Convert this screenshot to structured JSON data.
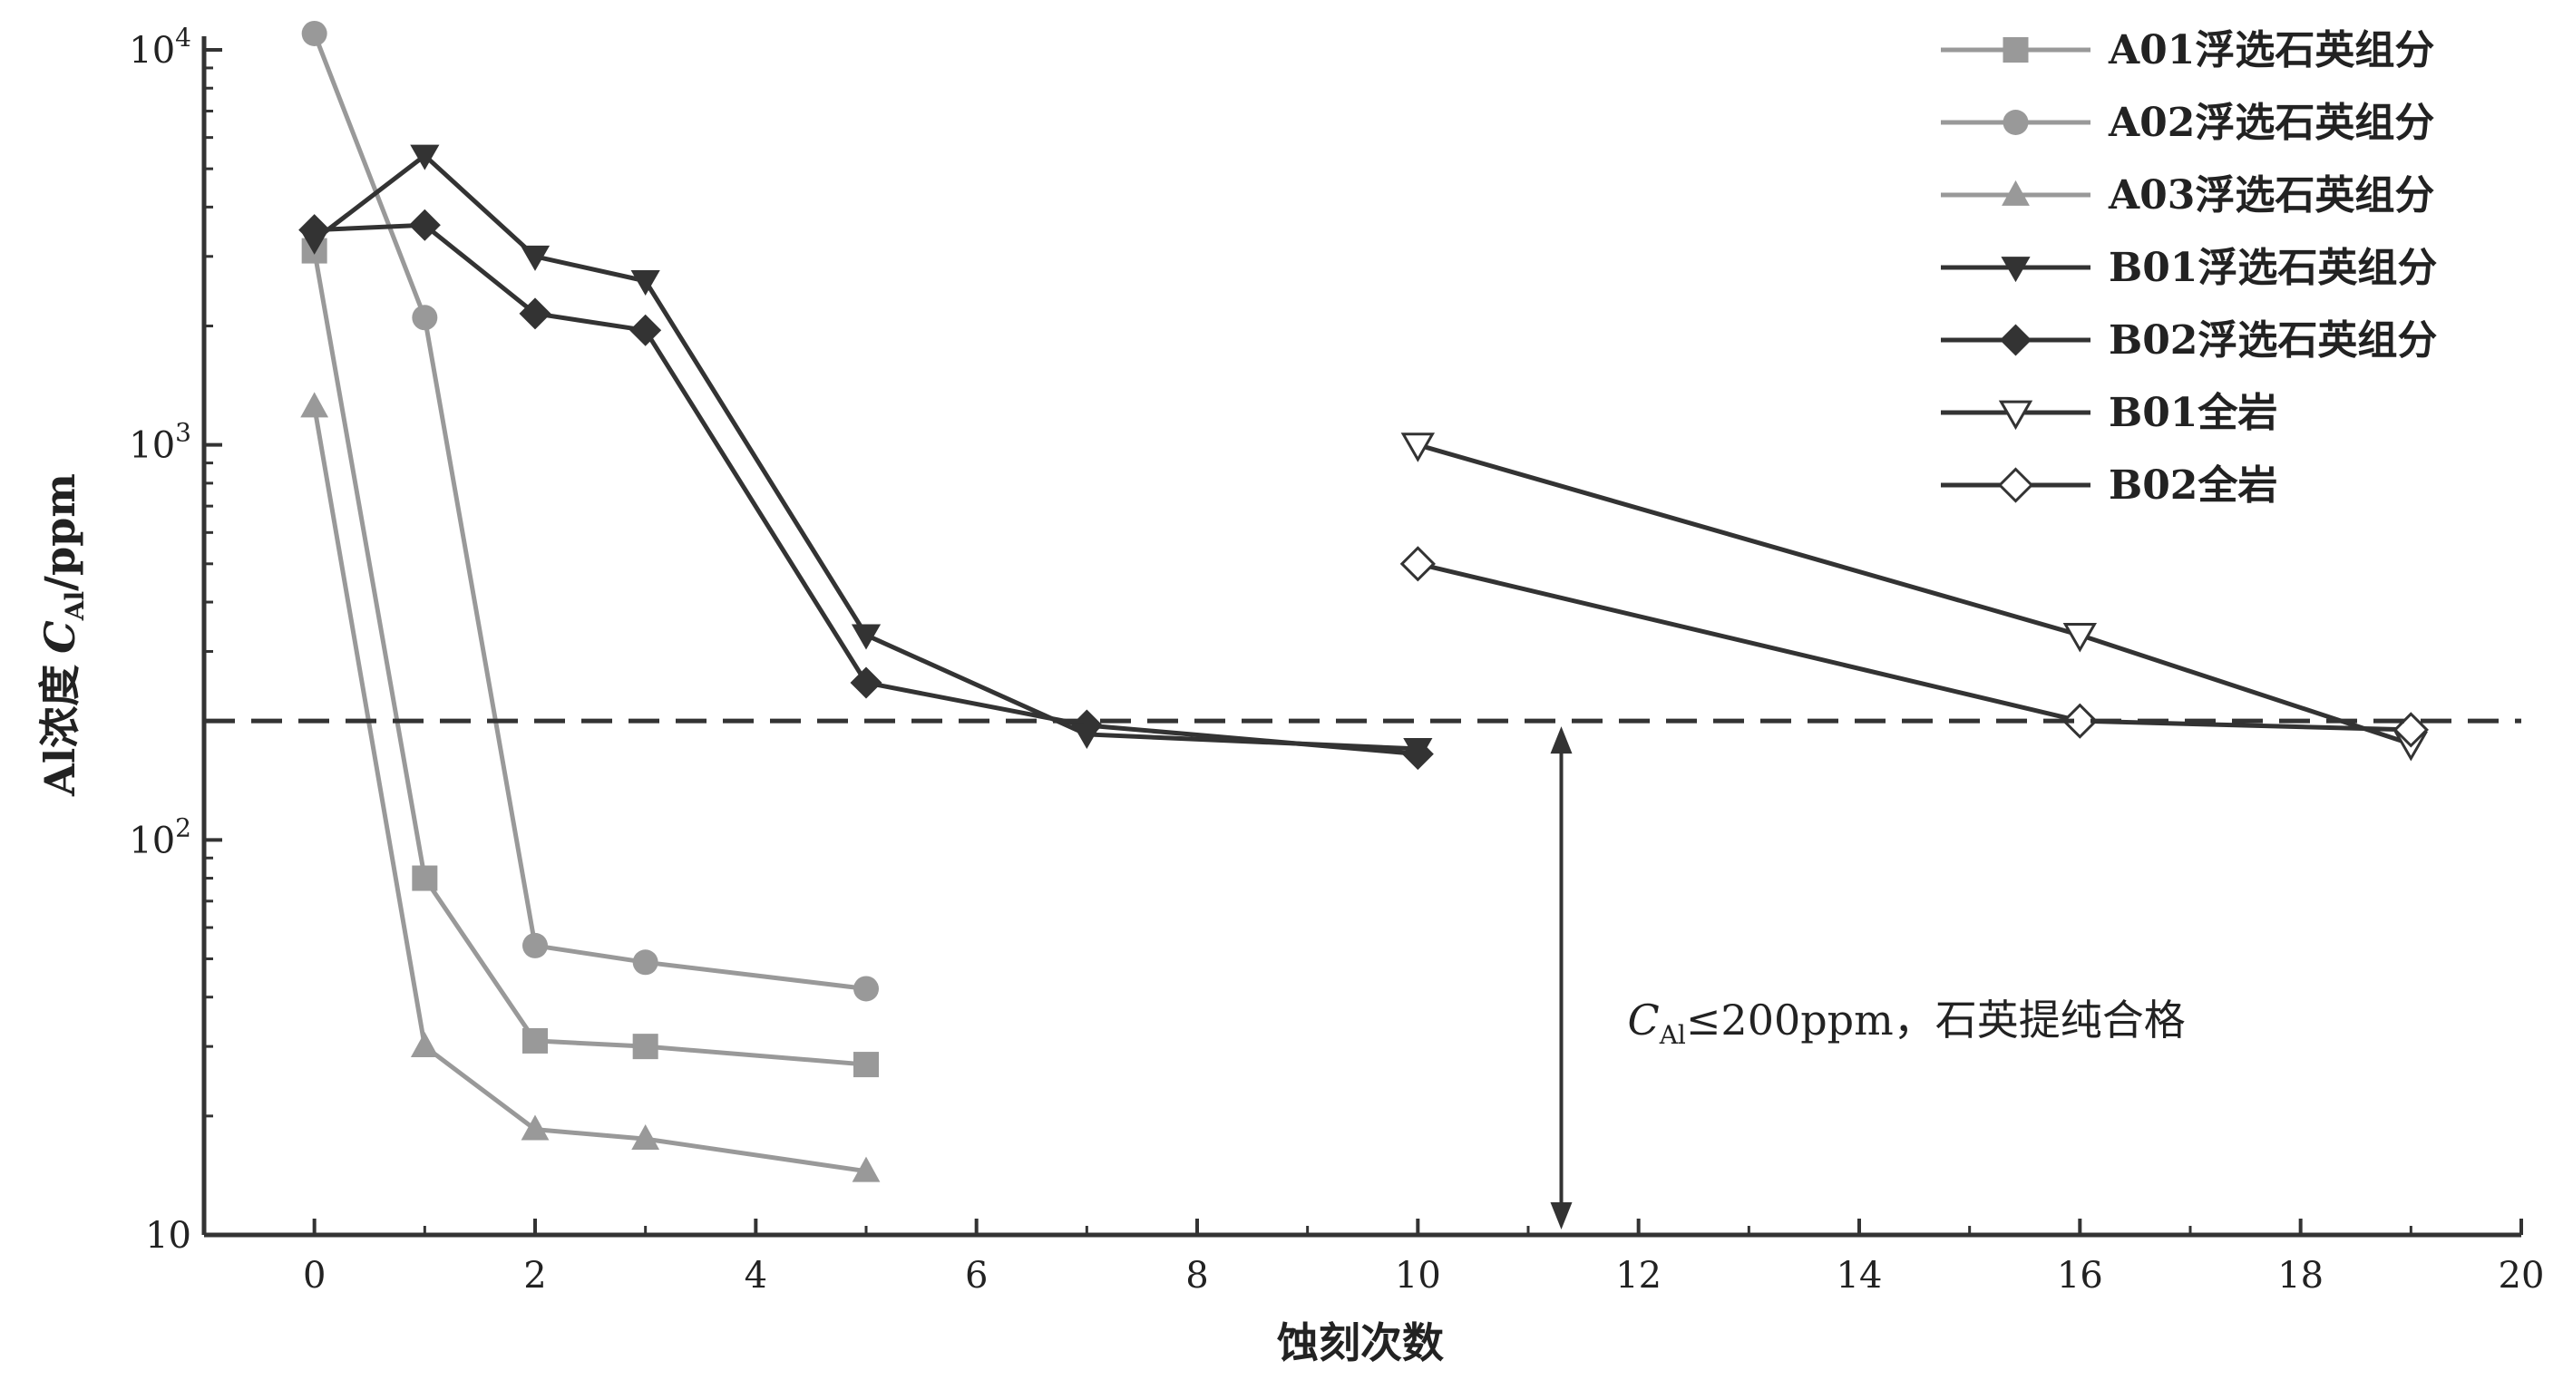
{
  "chart_data": {
    "type": "line",
    "xlabel": "蚀刻次数",
    "ylabel": "Al浓度",
    "ylabel_var": "C",
    "ylabel_sub": "Al",
    "ylabel_unit": "/ppm",
    "xlim": [
      -1,
      20
    ],
    "ylim": [
      10,
      10000
    ],
    "y_scale": "log",
    "x_ticks": [
      0,
      2,
      4,
      6,
      8,
      10,
      12,
      14,
      16,
      18,
      20
    ],
    "y_ticks": [
      {
        "value": 10,
        "base": "10",
        "exp": ""
      },
      {
        "value": 100,
        "base": "10",
        "exp": "2"
      },
      {
        "value": 1000,
        "base": "10",
        "exp": "3"
      },
      {
        "value": 10000,
        "base": "10",
        "exp": "4"
      }
    ],
    "legend_position": "top-right",
    "series": [
      {
        "name": "A01浮选石英组分",
        "marker": "square",
        "color": "#999999",
        "filled": true,
        "x": [
          0,
          1,
          2,
          3,
          5
        ],
        "y": [
          3100,
          80,
          31,
          30,
          27
        ]
      },
      {
        "name": "A02浮选石英组分",
        "marker": "circle",
        "color": "#999999",
        "filled": true,
        "x": [
          0,
          1,
          2,
          3,
          5
        ],
        "y": [
          11000,
          2100,
          54,
          49,
          42
        ]
      },
      {
        "name": "A03浮选石英组分",
        "marker": "triangle-up",
        "color": "#999999",
        "filled": true,
        "x": [
          0,
          1,
          2,
          3,
          5
        ],
        "y": [
          1250,
          30,
          18.5,
          17.5,
          14.5
        ]
      },
      {
        "name": "B01浮选石英组分",
        "marker": "triangle-down",
        "color": "#333333",
        "filled": true,
        "x": [
          0,
          1,
          2,
          3,
          5,
          7,
          10
        ],
        "y": [
          3300,
          5400,
          3000,
          2600,
          330,
          185,
          170
        ]
      },
      {
        "name": "B02浮选石英组分",
        "marker": "diamond",
        "color": "#333333",
        "filled": true,
        "x": [
          0,
          1,
          2,
          3,
          5,
          7,
          10
        ],
        "y": [
          3500,
          3600,
          2150,
          1950,
          250,
          195,
          165
        ]
      },
      {
        "name": "B01全岩",
        "marker": "triangle-down",
        "color": "#333333",
        "filled": false,
        "x": [
          10,
          16,
          19
        ],
        "y": [
          1000,
          330,
          175
        ]
      },
      {
        "name": "B02全岩",
        "marker": "diamond",
        "color": "#333333",
        "filled": false,
        "x": [
          10,
          16,
          19
        ],
        "y": [
          500,
          200,
          190
        ]
      }
    ],
    "threshold": {
      "y": 200,
      "style": "dashed"
    },
    "annotation": {
      "x_arrow": 11.3,
      "var": "C",
      "sub": "Al",
      "text": "≤200ppm，石英提纯合格",
      "x": 11.9,
      "y": 35
    }
  }
}
